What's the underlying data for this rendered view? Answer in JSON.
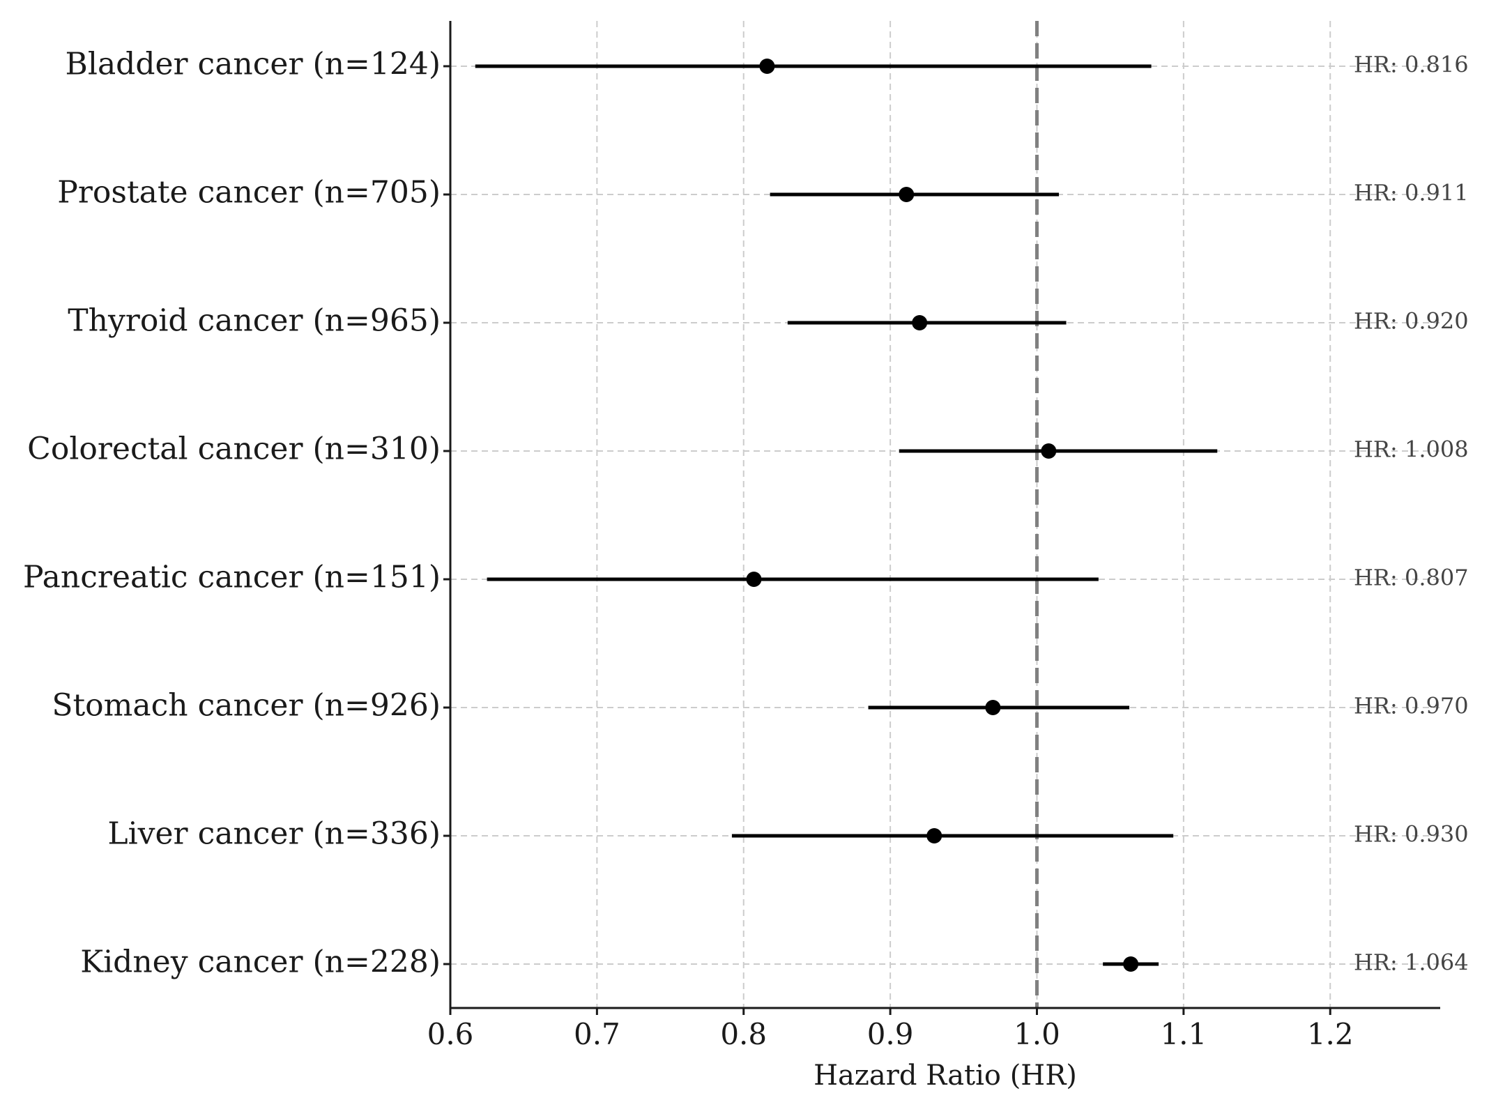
{
  "chart_data": {
    "type": "forest",
    "xlabel": "Hazard Ratio (HR)",
    "xlim": [
      0.6,
      1.275
    ],
    "xticks": [
      "0.6",
      "0.7",
      "0.8",
      "0.9",
      "1.0",
      "1.1",
      "1.2"
    ],
    "reference_line": 1.0,
    "grid": true,
    "colors": {
      "marker": "#000000",
      "reference": "#808080",
      "grid": "#cccccc",
      "hr_text": "#444444"
    },
    "rows": [
      {
        "label": "Bladder cancer (n=124)",
        "hr": 0.816,
        "lower": 0.617,
        "upper": 1.078,
        "hr_text": "HR: 0.816"
      },
      {
        "label": "Prostate cancer (n=705)",
        "hr": 0.911,
        "lower": 0.818,
        "upper": 1.015,
        "hr_text": "HR: 0.911"
      },
      {
        "label": "Thyroid cancer (n=965)",
        "hr": 0.92,
        "lower": 0.83,
        "upper": 1.02,
        "hr_text": "HR: 0.920"
      },
      {
        "label": "Colorectal cancer (n=310)",
        "hr": 1.008,
        "lower": 0.906,
        "upper": 1.123,
        "hr_text": "HR: 1.008"
      },
      {
        "label": "Pancreatic cancer (n=151)",
        "hr": 0.807,
        "lower": 0.625,
        "upper": 1.042,
        "hr_text": "HR: 0.807"
      },
      {
        "label": "Stomach cancer (n=926)",
        "hr": 0.97,
        "lower": 0.885,
        "upper": 1.063,
        "hr_text": "HR: 0.970"
      },
      {
        "label": "Liver cancer (n=336)",
        "hr": 0.93,
        "lower": 0.792,
        "upper": 1.093,
        "hr_text": "HR: 0.930"
      },
      {
        "label": "Kidney cancer (n=228)",
        "hr": 1.064,
        "lower": 1.045,
        "upper": 1.083,
        "hr_text": "HR: 1.064"
      }
    ]
  }
}
